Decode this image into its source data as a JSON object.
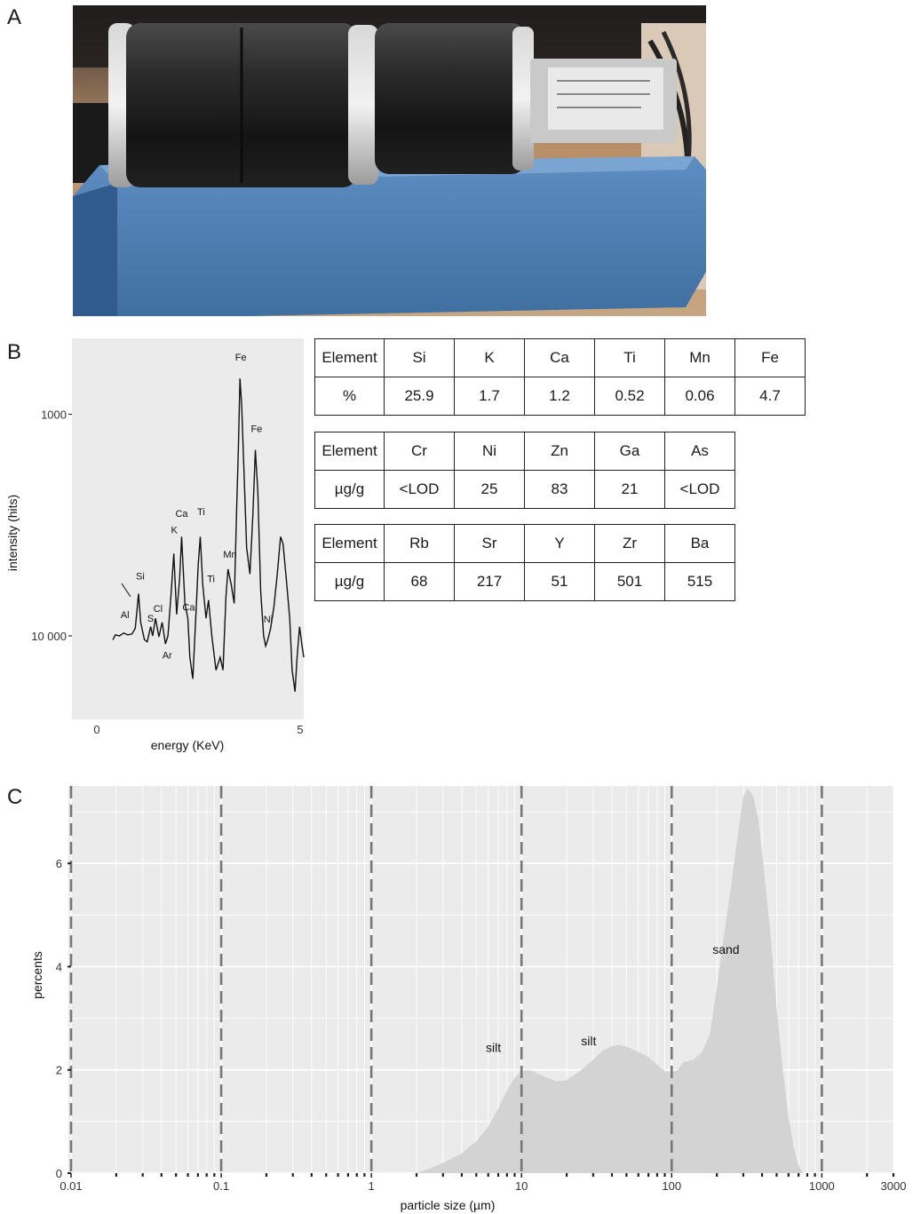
{
  "panels": {
    "a": "A",
    "b": "B",
    "c": "C"
  },
  "colors": {
    "panel_bg": "#ebebeb",
    "area_fill": "#d3d3d3",
    "line": "#111111",
    "dashed": "#777777",
    "photo_frame": "#3a6aa0"
  },
  "photo": {
    "subject": "rock tumbler with two black rubber barrels on a blue base"
  },
  "tables": [
    {
      "header_label": "Element",
      "unit_label": "%",
      "elements": [
        "Si",
        "K",
        "Ca",
        "Ti",
        "Mn",
        "Fe"
      ],
      "values": [
        "25.9",
        "1.7",
        "1.2",
        "0.52",
        "0.06",
        "4.7"
      ]
    },
    {
      "header_label": "Element",
      "unit_label": "µg/g",
      "elements": [
        "Cr",
        "Ni",
        "Zn",
        "Ga",
        "As"
      ],
      "values": [
        "<LOD",
        "25",
        "83",
        "21",
        "<LOD"
      ]
    },
    {
      "header_label": "Element",
      "unit_label": "µg/g",
      "elements": [
        "Rb",
        "Sr",
        "Y",
        "Zr",
        "Ba"
      ],
      "values": [
        "68",
        "217",
        "51",
        "501",
        "515"
      ]
    }
  ],
  "chart_data": [
    {
      "type": "line",
      "xlabel": "energy (KeV)",
      "ylabel": "intensity (hits)",
      "yscale": "log",
      "xlim": [
        -0.6,
        5.0
      ],
      "ylim": [
        420,
        22000
      ],
      "x_ticks": [
        "0",
        "5"
      ],
      "y_ticks": [
        "1000",
        "10 000"
      ],
      "grid": false,
      "points": [
        [
          0.39,
          960
        ],
        [
          0.45,
          1010
        ],
        [
          0.55,
          1000
        ],
        [
          0.65,
          1030
        ],
        [
          0.75,
          1010
        ],
        [
          0.85,
          1020
        ],
        [
          0.93,
          1080
        ],
        [
          0.98,
          1350
        ],
        [
          1.01,
          1550
        ],
        [
          1.06,
          1150
        ],
        [
          1.15,
          960
        ],
        [
          1.22,
          940
        ],
        [
          1.3,
          1100
        ],
        [
          1.35,
          1000
        ],
        [
          1.42,
          1200
        ],
        [
          1.5,
          990
        ],
        [
          1.58,
          1150
        ],
        [
          1.66,
          920
        ],
        [
          1.72,
          1000
        ],
        [
          1.8,
          1600
        ],
        [
          1.86,
          2350
        ],
        [
          1.93,
          1250
        ],
        [
          2.0,
          1800
        ],
        [
          2.05,
          2800
        ],
        [
          2.13,
          1400
        ],
        [
          2.2,
          1200
        ],
        [
          2.25,
          800
        ],
        [
          2.32,
          640
        ],
        [
          2.4,
          1300
        ],
        [
          2.45,
          2100
        ],
        [
          2.5,
          2800
        ],
        [
          2.56,
          1700
        ],
        [
          2.64,
          1200
        ],
        [
          2.7,
          1450
        ],
        [
          2.78,
          1000
        ],
        [
          2.88,
          700
        ],
        [
          2.98,
          800
        ],
        [
          3.05,
          700
        ],
        [
          3.12,
          1500
        ],
        [
          3.17,
          2000
        ],
        [
          3.25,
          1700
        ],
        [
          3.32,
          1400
        ],
        [
          3.38,
          3800
        ],
        [
          3.42,
          7000
        ],
        [
          3.46,
          14500
        ],
        [
          3.5,
          11000
        ],
        [
          3.55,
          6000
        ],
        [
          3.62,
          2500
        ],
        [
          3.7,
          1900
        ],
        [
          3.77,
          3500
        ],
        [
          3.83,
          6900
        ],
        [
          3.89,
          4500
        ],
        [
          3.96,
          1600
        ],
        [
          4.03,
          1000
        ],
        [
          4.08,
          900
        ],
        [
          4.13,
          960
        ],
        [
          4.2,
          1080
        ],
        [
          4.28,
          1350
        ],
        [
          4.36,
          1900
        ],
        [
          4.44,
          2800
        ],
        [
          4.5,
          2600
        ],
        [
          4.58,
          1800
        ],
        [
          4.66,
          1200
        ],
        [
          4.72,
          700
        ],
        [
          4.79,
          560
        ],
        [
          4.84,
          800
        ],
        [
          4.9,
          1100
        ],
        [
          4.96,
          900
        ],
        [
          5.05,
          800
        ]
      ],
      "peak_labels": [
        {
          "text": "Al",
          "x": 0.68,
          "y": 1200
        },
        {
          "text": "Si",
          "x": 1.05,
          "y": 1800
        },
        {
          "text": "S",
          "x": 1.3,
          "y": 1160
        },
        {
          "text": "Cl",
          "x": 1.48,
          "y": 1280
        },
        {
          "text": "Ar",
          "x": 1.7,
          "y": 790
        },
        {
          "text": "K",
          "x": 1.87,
          "y": 2900
        },
        {
          "text": "Ca",
          "x": 2.05,
          "y": 3450
        },
        {
          "text": "Ca",
          "x": 2.22,
          "y": 1300
        },
        {
          "text": "Ti",
          "x": 2.52,
          "y": 3500
        },
        {
          "text": "Ti",
          "x": 2.76,
          "y": 1750
        },
        {
          "text": "Mn",
          "x": 3.22,
          "y": 2250
        },
        {
          "text": "Fe",
          "x": 3.48,
          "y": 17500
        },
        {
          "text": "Fe",
          "x": 3.86,
          "y": 8300
        },
        {
          "text": "Ni",
          "x": 4.14,
          "y": 1150
        }
      ]
    },
    {
      "type": "area",
      "xlabel": "particle size (µm)",
      "ylabel": "percents",
      "xscale": "log",
      "xlim": [
        0.01,
        3000
      ],
      "ylim": [
        0,
        7.5
      ],
      "x_ticks": [
        "0.01",
        "0.1",
        "1",
        "10",
        "100",
        "1000",
        "3000"
      ],
      "y_ticks": [
        "0",
        "2",
        "4",
        "6"
      ],
      "grid": true,
      "dashed_lines_x": [
        0.01,
        0.1,
        1,
        10,
        100,
        1000
      ],
      "points": [
        [
          2.0,
          0
        ],
        [
          2.5,
          0.1
        ],
        [
          3,
          0.2
        ],
        [
          4,
          0.38
        ],
        [
          5,
          0.62
        ],
        [
          6,
          0.9
        ],
        [
          7,
          1.25
        ],
        [
          8,
          1.6
        ],
        [
          9,
          1.85
        ],
        [
          10,
          1.97
        ],
        [
          11,
          2.0
        ],
        [
          12,
          1.97
        ],
        [
          14,
          1.88
        ],
        [
          17,
          1.78
        ],
        [
          20,
          1.8
        ],
        [
          25,
          2.0
        ],
        [
          30,
          2.2
        ],
        [
          35,
          2.38
        ],
        [
          40,
          2.46
        ],
        [
          45,
          2.48
        ],
        [
          50,
          2.45
        ],
        [
          60,
          2.35
        ],
        [
          70,
          2.25
        ],
        [
          80,
          2.1
        ],
        [
          90,
          1.98
        ],
        [
          100,
          1.95
        ],
        [
          110,
          2.0
        ],
        [
          120,
          2.15
        ],
        [
          140,
          2.2
        ],
        [
          160,
          2.35
        ],
        [
          180,
          2.7
        ],
        [
          200,
          3.6
        ],
        [
          220,
          4.5
        ],
        [
          250,
          5.6
        ],
        [
          280,
          6.7
        ],
        [
          300,
          7.3
        ],
        [
          320,
          7.45
        ],
        [
          350,
          7.3
        ],
        [
          380,
          6.8
        ],
        [
          400,
          6.2
        ],
        [
          450,
          4.8
        ],
        [
          500,
          3.2
        ],
        [
          550,
          2.0
        ],
        [
          600,
          1.1
        ],
        [
          650,
          0.5
        ],
        [
          700,
          0.15
        ],
        [
          750,
          0
        ]
      ],
      "annotations": [
        {
          "text": "silt",
          "x": 6.5,
          "y": 2.35
        },
        {
          "text": "silt",
          "x": 28,
          "y": 2.48
        },
        {
          "text": "sand",
          "x": 230,
          "y": 4.25
        }
      ]
    }
  ]
}
